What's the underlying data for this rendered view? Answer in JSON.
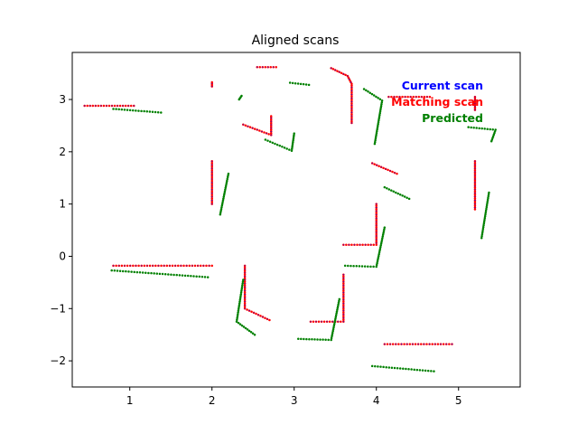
{
  "chart_data": {
    "type": "scatter",
    "title": "Aligned scans",
    "xlabel": "",
    "ylabel": "",
    "xlim": [
      0.3,
      5.75
    ],
    "ylim": [
      -2.5,
      3.9
    ],
    "xticks": [
      1,
      2,
      3,
      4,
      5
    ],
    "yticks": [
      -2,
      -1,
      0,
      1,
      2,
      3
    ],
    "grid": false,
    "legend": {
      "placement": "top-right",
      "entries": [
        {
          "label": "Current scan",
          "color": "#0000ff"
        },
        {
          "label": "Matching scan",
          "color": "#ff0000"
        },
        {
          "label": "Predicted",
          "color": "#008000"
        }
      ]
    },
    "series": [
      {
        "name": "Matching scan",
        "color": "#ff0000",
        "segments": [
          [
            [
              0.45,
              2.88
            ],
            [
              1.05,
              2.88
            ]
          ],
          [
            [
              2.0,
              3.25
            ],
            [
              2.0,
              3.33
            ]
          ],
          [
            [
              2.55,
              3.62
            ],
            [
              2.78,
              3.62
            ]
          ],
          [
            [
              3.45,
              3.6
            ],
            [
              3.65,
              3.45
            ],
            [
              3.7,
              3.3
            ],
            [
              3.7,
              2.55
            ]
          ],
          [
            [
              2.38,
              2.52
            ],
            [
              2.72,
              2.32
            ],
            [
              2.72,
              2.68
            ]
          ],
          [
            [
              4.15,
              3.05
            ],
            [
              4.65,
              3.05
            ]
          ],
          [
            [
              5.2,
              3.05
            ],
            [
              5.2,
              2.8
            ]
          ],
          [
            [
              2.0,
              1.82
            ],
            [
              2.0,
              1.0
            ]
          ],
          [
            [
              3.95,
              1.78
            ],
            [
              4.25,
              1.58
            ]
          ],
          [
            [
              5.2,
              1.82
            ],
            [
              5.2,
              0.9
            ]
          ],
          [
            [
              4.0,
              1.0
            ],
            [
              4.0,
              0.22
            ],
            [
              3.6,
              0.22
            ]
          ],
          [
            [
              0.8,
              -0.18
            ],
            [
              2.0,
              -0.18
            ]
          ],
          [
            [
              2.4,
              -0.18
            ],
            [
              2.4,
              -1.0
            ],
            [
              2.7,
              -1.22
            ]
          ],
          [
            [
              3.6,
              -0.35
            ],
            [
              3.6,
              -1.25
            ],
            [
              3.2,
              -1.25
            ]
          ],
          [
            [
              4.1,
              -1.68
            ],
            [
              4.92,
              -1.68
            ]
          ]
        ]
      },
      {
        "name": "Predicted",
        "color": "#008000",
        "segments": [
          [
            [
              0.8,
              2.82
            ],
            [
              1.38,
              2.75
            ]
          ],
          [
            [
              2.33,
              3.0
            ],
            [
              2.36,
              3.07
            ]
          ],
          [
            [
              2.95,
              3.32
            ],
            [
              3.18,
              3.28
            ]
          ],
          [
            [
              3.85,
              3.2
            ],
            [
              4.07,
              2.98
            ],
            [
              3.98,
              2.15
            ]
          ],
          [
            [
              2.65,
              2.23
            ],
            [
              2.97,
              2.02
            ],
            [
              3.0,
              2.35
            ]
          ],
          [
            [
              5.12,
              2.47
            ],
            [
              5.45,
              2.42
            ],
            [
              5.4,
              2.2
            ]
          ],
          [
            [
              2.1,
              0.8
            ],
            [
              2.2,
              1.58
            ]
          ],
          [
            [
              4.1,
              1.32
            ],
            [
              4.4,
              1.1
            ]
          ],
          [
            [
              5.28,
              0.35
            ],
            [
              5.37,
              1.22
            ]
          ],
          [
            [
              4.1,
              0.55
            ],
            [
              4.0,
              -0.2
            ],
            [
              3.62,
              -0.18
            ]
          ],
          [
            [
              0.78,
              -0.27
            ],
            [
              1.95,
              -0.4
            ]
          ],
          [
            [
              2.38,
              -0.45
            ],
            [
              2.3,
              -1.25
            ],
            [
              2.52,
              -1.5
            ]
          ],
          [
            [
              3.55,
              -0.82
            ],
            [
              3.45,
              -1.6
            ],
            [
              3.05,
              -1.58
            ]
          ],
          [
            [
              3.95,
              -2.1
            ],
            [
              4.7,
              -2.2
            ]
          ]
        ]
      }
    ]
  }
}
